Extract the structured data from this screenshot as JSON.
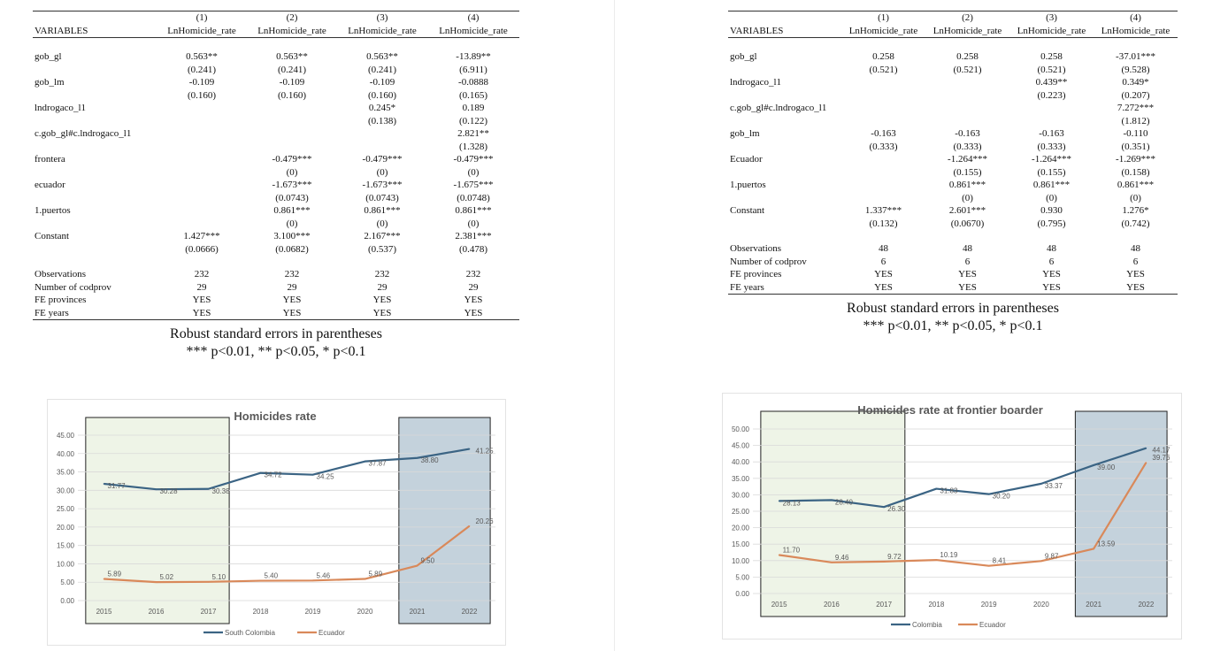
{
  "table1": {
    "col_numbers": [
      "(1)",
      "(2)",
      "(3)",
      "(4)"
    ],
    "var_header": "VARIABLES",
    "col_names": [
      "LnHomicide_rate",
      "LnHomicide_rate",
      "LnHomicide_rate",
      "LnHomicide_rate"
    ],
    "coef_rows": [
      {
        "label": "gob_gl",
        "coef": [
          "0.563**",
          "0.563**",
          "0.563**",
          "-13.89**"
        ],
        "se": [
          "(0.241)",
          "(0.241)",
          "(0.241)",
          "(6.911)"
        ]
      },
      {
        "label": "gob_lm",
        "coef": [
          "-0.109",
          "-0.109",
          "-0.109",
          "-0.0888"
        ],
        "se": [
          "(0.160)",
          "(0.160)",
          "(0.160)",
          "(0.165)"
        ]
      },
      {
        "label": "lndrogaco_l1",
        "coef": [
          "",
          "",
          "0.245*",
          "0.189"
        ],
        "se": [
          "",
          "",
          "(0.138)",
          "(0.122)"
        ]
      },
      {
        "label": "c.gob_gl#c.lndrogaco_l1",
        "coef": [
          "",
          "",
          "",
          "2.821**"
        ],
        "se": [
          "",
          "",
          "",
          "(1.328)"
        ]
      },
      {
        "label": "frontera",
        "coef": [
          "",
          "-0.479***",
          "-0.479***",
          "-0.479***"
        ],
        "se": [
          "",
          "(0)",
          "(0)",
          "(0)"
        ]
      },
      {
        "label": "ecuador",
        "coef": [
          "",
          "-1.673***",
          "-1.673***",
          "-1.675***"
        ],
        "se": [
          "",
          "(0.0743)",
          "(0.0743)",
          "(0.0748)"
        ]
      },
      {
        "label": "1.puertos",
        "coef": [
          "",
          "0.861***",
          "0.861***",
          "0.861***"
        ],
        "se": [
          "",
          "(0)",
          "(0)",
          "(0)"
        ]
      },
      {
        "label": "Constant",
        "coef": [
          "1.427***",
          "3.100***",
          "2.167***",
          "2.381***"
        ],
        "se": [
          "(0.0666)",
          "(0.0682)",
          "(0.537)",
          "(0.478)"
        ]
      }
    ],
    "stat_rows": [
      {
        "label": "Observations",
        "vals": [
          "232",
          "232",
          "232",
          "232"
        ]
      },
      {
        "label": "Number of codprov",
        "vals": [
          "29",
          "29",
          "29",
          "29"
        ]
      },
      {
        "label": "FE provinces",
        "vals": [
          "YES",
          "YES",
          "YES",
          "YES"
        ]
      },
      {
        "label": "FE years",
        "vals": [
          "YES",
          "YES",
          "YES",
          "YES"
        ]
      }
    ],
    "note1": "Robust standard errors in parentheses",
    "note2": "*** p<0.01, ** p<0.05, * p<0.1"
  },
  "table2": {
    "col_numbers": [
      "(1)",
      "(2)",
      "(3)",
      "(4)"
    ],
    "var_header": "VARIABLES",
    "col_names": [
      "LnHomicide_rate",
      "LnHomicide_rate",
      "LnHomicide_rate",
      "LnHomicide_rate"
    ],
    "coef_rows": [
      {
        "label": "gob_gl",
        "coef": [
          "0.258",
          "0.258",
          "0.258",
          "-37.01***"
        ],
        "se": [
          "(0.521)",
          "(0.521)",
          "(0.521)",
          "(9.528)"
        ]
      },
      {
        "label": "lndrogaco_l1",
        "coef": [
          "",
          "",
          "0.439**",
          "0.349*"
        ],
        "se": [
          "",
          "",
          "(0.223)",
          "(0.207)"
        ]
      },
      {
        "label": "c.gob_gl#c.lndrogaco_l1",
        "coef": [
          "",
          "",
          "",
          "7.272***"
        ],
        "se": [
          "",
          "",
          "",
          "(1.812)"
        ]
      },
      {
        "label": "gob_lm",
        "coef": [
          "-0.163",
          "-0.163",
          "-0.163",
          "-0.110"
        ],
        "se": [
          "(0.333)",
          "(0.333)",
          "(0.333)",
          "(0.351)"
        ]
      },
      {
        "label": "Ecuador",
        "coef": [
          "",
          "-1.264***",
          "-1.264***",
          "-1.269***"
        ],
        "se": [
          "",
          "(0.155)",
          "(0.155)",
          "(0.158)"
        ]
      },
      {
        "label": "1.puertos",
        "coef": [
          "",
          "0.861***",
          "0.861***",
          "0.861***"
        ],
        "se": [
          "",
          "(0)",
          "(0)",
          "(0)"
        ]
      },
      {
        "label": "Constant",
        "coef": [
          "1.337***",
          "2.601***",
          "0.930",
          "1.276*"
        ],
        "se": [
          "(0.132)",
          "(0.0670)",
          "(0.795)",
          "(0.742)"
        ]
      }
    ],
    "stat_rows": [
      {
        "label": "Observations",
        "vals": [
          "48",
          "48",
          "48",
          "48"
        ]
      },
      {
        "label": "Number of codprov",
        "vals": [
          "6",
          "6",
          "6",
          "6"
        ]
      },
      {
        "label": "FE provinces",
        "vals": [
          "YES",
          "YES",
          "YES",
          "YES"
        ]
      },
      {
        "label": "FE years",
        "vals": [
          "YES",
          "YES",
          "YES",
          "YES"
        ]
      }
    ],
    "note1": "Robust standard errors in parentheses",
    "note2": "*** p<0.01, ** p<0.05, * p<0.1"
  },
  "chart_data": [
    {
      "type": "line",
      "title": "Homicides rate",
      "x": [
        "2015",
        "2016",
        "2017",
        "2018",
        "2019",
        "2020",
        "2021",
        "2022"
      ],
      "ylim": [
        0,
        45
      ],
      "yticks": [
        "0.00",
        "5.00",
        "10.00",
        "15.00",
        "20.00",
        "25.00",
        "30.00",
        "35.00",
        "40.00",
        "45.00"
      ],
      "grid": true,
      "legend_position": "bottom",
      "series": [
        {
          "name": "South Colombia",
          "color": "#3b6484",
          "values": [
            31.77,
            30.28,
            30.38,
            34.72,
            34.25,
            37.87,
            38.8,
            41.25
          ],
          "labels": [
            "31.77",
            "30.28",
            "30.38",
            "34.72",
            "34.25",
            "37.87",
            "38.80",
            "41.25"
          ]
        },
        {
          "name": "Ecuador",
          "color": "#d9895a",
          "values": [
            5.89,
            5.02,
            5.1,
            5.4,
            5.46,
            5.89,
            9.5,
            20.26
          ],
          "labels": [
            "5.89",
            "5.02",
            "5.10",
            "5.40",
            "5.46",
            "5.89",
            "9.50",
            "20.26"
          ]
        }
      ],
      "shaded_periods": [
        {
          "from": "2015",
          "to": "2017",
          "color": "#eef4e7"
        },
        {
          "from": "2021",
          "to": "2022",
          "color": "#c4d2dc"
        }
      ]
    },
    {
      "type": "line",
      "title": "Homicides rate at frontier boarder",
      "x": [
        "2015",
        "2016",
        "2017",
        "2018",
        "2019",
        "2020",
        "2021",
        "2022"
      ],
      "ylim": [
        0,
        50
      ],
      "yticks": [
        "0.00",
        "5.00",
        "10.00",
        "15.00",
        "20.00",
        "25.00",
        "30.00",
        "35.00",
        "40.00",
        "45.00",
        "50.00"
      ],
      "grid": true,
      "legend_position": "bottom",
      "series": [
        {
          "name": "Colombia",
          "color": "#3b6484",
          "values": [
            28.13,
            28.4,
            26.3,
            31.83,
            30.2,
            33.37,
            39.0,
            44.17
          ],
          "labels": [
            "28.13",
            "28.40",
            "26.30",
            "31.83",
            "30.20",
            "33.37",
            "39.00",
            "44.17"
          ]
        },
        {
          "name": "Ecuador",
          "color": "#d9895a",
          "values": [
            11.7,
            9.46,
            9.72,
            10.19,
            8.41,
            9.87,
            13.59,
            39.76
          ],
          "labels": [
            "11.70",
            "9.46",
            "9.72",
            "10.19",
            "8.41",
            "9.87",
            "13.59",
            "39.76"
          ]
        }
      ],
      "shaded_periods": [
        {
          "from": "2015",
          "to": "2017",
          "color": "#eef4e7"
        },
        {
          "from": "2021",
          "to": "2022",
          "color": "#c4d2dc"
        }
      ]
    }
  ]
}
